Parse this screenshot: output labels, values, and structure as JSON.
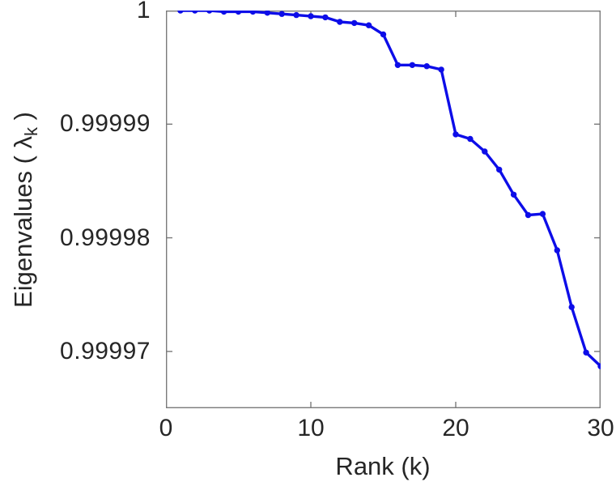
{
  "chart_data": {
    "type": "line",
    "title": "",
    "xlabel": "Rank (k)",
    "ylabel": "Eigenvalues ( λ_k )",
    "ylabel_parts": {
      "main": "Eigenvalues ( λ",
      "sub": "k",
      "close": " )"
    },
    "series": [
      {
        "name": "eigenvalues",
        "x": [
          1,
          2,
          3,
          4,
          5,
          6,
          7,
          8,
          9,
          10,
          11,
          12,
          13,
          14,
          15,
          16,
          17,
          18,
          19,
          20,
          21,
          22,
          23,
          24,
          25,
          26,
          27,
          28,
          29,
          30
        ],
        "values": [
          1.0,
          1.0,
          1.0,
          0.9999999,
          0.9999999,
          0.9999999,
          0.9999998,
          0.9999997,
          0.9999996,
          0.9999995,
          0.9999994,
          0.999999,
          0.9999989,
          0.9999987,
          0.9999979,
          0.9999952,
          0.9999952,
          0.9999951,
          0.9999948,
          0.9999891,
          0.9999887,
          0.9999876,
          0.999986,
          0.9999838,
          0.999982,
          0.9999821,
          0.9999789,
          0.9999739,
          0.9999699,
          0.9999687
        ]
      }
    ],
    "xlim": [
      0,
      30
    ],
    "ylim": [
      0.999965,
      1.0
    ],
    "xticks": {
      "values": [
        0,
        10,
        20,
        30
      ],
      "labels": [
        "0",
        "10",
        "20",
        "30"
      ]
    },
    "yticks": {
      "values": [
        1.0,
        0.99999,
        0.99998,
        0.99997
      ],
      "labels": [
        "1",
        "0.99999",
        "0.99998",
        "0.99997"
      ]
    },
    "grid": false,
    "legend": null,
    "marker": "filled-circle",
    "line_color": "#0d0de8",
    "axis_color": "#7a7a7a",
    "text_color": "#262626"
  }
}
